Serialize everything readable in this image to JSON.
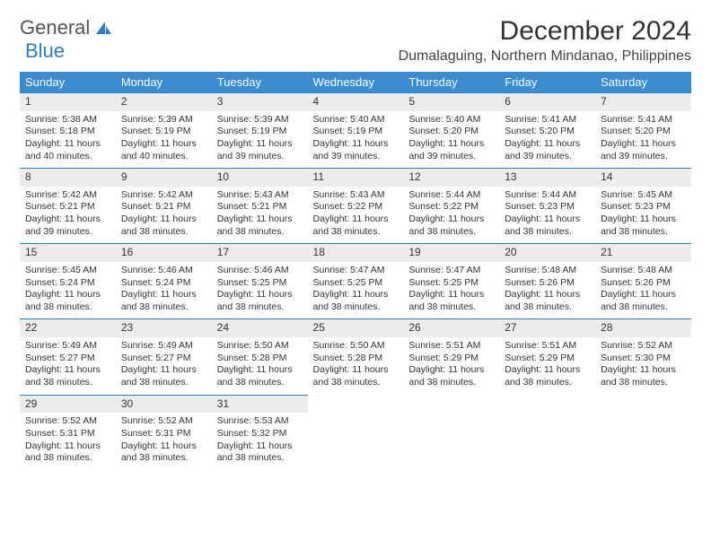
{
  "logo": {
    "text_general": "General",
    "text_blue": "Blue"
  },
  "title": "December 2024",
  "location": "Dumalaguing, Northern Mindanao, Philippines",
  "weekdays": [
    "Sunday",
    "Monday",
    "Tuesday",
    "Wednesday",
    "Thursday",
    "Friday",
    "Saturday"
  ],
  "colors": {
    "header_bg": "#3a8bcf",
    "header_text": "#ffffff",
    "daynum_bg": "#ececec",
    "daynum_border": "#2d7fc4",
    "body_text": "#333333"
  },
  "weeks": [
    [
      {
        "n": "1",
        "sr": "Sunrise: 5:38 AM",
        "ss": "Sunset: 5:18 PM",
        "dl1": "Daylight: 11 hours",
        "dl2": "and 40 minutes."
      },
      {
        "n": "2",
        "sr": "Sunrise: 5:39 AM",
        "ss": "Sunset: 5:19 PM",
        "dl1": "Daylight: 11 hours",
        "dl2": "and 40 minutes."
      },
      {
        "n": "3",
        "sr": "Sunrise: 5:39 AM",
        "ss": "Sunset: 5:19 PM",
        "dl1": "Daylight: 11 hours",
        "dl2": "and 39 minutes."
      },
      {
        "n": "4",
        "sr": "Sunrise: 5:40 AM",
        "ss": "Sunset: 5:19 PM",
        "dl1": "Daylight: 11 hours",
        "dl2": "and 39 minutes."
      },
      {
        "n": "5",
        "sr": "Sunrise: 5:40 AM",
        "ss": "Sunset: 5:20 PM",
        "dl1": "Daylight: 11 hours",
        "dl2": "and 39 minutes."
      },
      {
        "n": "6",
        "sr": "Sunrise: 5:41 AM",
        "ss": "Sunset: 5:20 PM",
        "dl1": "Daylight: 11 hours",
        "dl2": "and 39 minutes."
      },
      {
        "n": "7",
        "sr": "Sunrise: 5:41 AM",
        "ss": "Sunset: 5:20 PM",
        "dl1": "Daylight: 11 hours",
        "dl2": "and 39 minutes."
      }
    ],
    [
      {
        "n": "8",
        "sr": "Sunrise: 5:42 AM",
        "ss": "Sunset: 5:21 PM",
        "dl1": "Daylight: 11 hours",
        "dl2": "and 39 minutes."
      },
      {
        "n": "9",
        "sr": "Sunrise: 5:42 AM",
        "ss": "Sunset: 5:21 PM",
        "dl1": "Daylight: 11 hours",
        "dl2": "and 38 minutes."
      },
      {
        "n": "10",
        "sr": "Sunrise: 5:43 AM",
        "ss": "Sunset: 5:21 PM",
        "dl1": "Daylight: 11 hours",
        "dl2": "and 38 minutes."
      },
      {
        "n": "11",
        "sr": "Sunrise: 5:43 AM",
        "ss": "Sunset: 5:22 PM",
        "dl1": "Daylight: 11 hours",
        "dl2": "and 38 minutes."
      },
      {
        "n": "12",
        "sr": "Sunrise: 5:44 AM",
        "ss": "Sunset: 5:22 PM",
        "dl1": "Daylight: 11 hours",
        "dl2": "and 38 minutes."
      },
      {
        "n": "13",
        "sr": "Sunrise: 5:44 AM",
        "ss": "Sunset: 5:23 PM",
        "dl1": "Daylight: 11 hours",
        "dl2": "and 38 minutes."
      },
      {
        "n": "14",
        "sr": "Sunrise: 5:45 AM",
        "ss": "Sunset: 5:23 PM",
        "dl1": "Daylight: 11 hours",
        "dl2": "and 38 minutes."
      }
    ],
    [
      {
        "n": "15",
        "sr": "Sunrise: 5:45 AM",
        "ss": "Sunset: 5:24 PM",
        "dl1": "Daylight: 11 hours",
        "dl2": "and 38 minutes."
      },
      {
        "n": "16",
        "sr": "Sunrise: 5:46 AM",
        "ss": "Sunset: 5:24 PM",
        "dl1": "Daylight: 11 hours",
        "dl2": "and 38 minutes."
      },
      {
        "n": "17",
        "sr": "Sunrise: 5:46 AM",
        "ss": "Sunset: 5:25 PM",
        "dl1": "Daylight: 11 hours",
        "dl2": "and 38 minutes."
      },
      {
        "n": "18",
        "sr": "Sunrise: 5:47 AM",
        "ss": "Sunset: 5:25 PM",
        "dl1": "Daylight: 11 hours",
        "dl2": "and 38 minutes."
      },
      {
        "n": "19",
        "sr": "Sunrise: 5:47 AM",
        "ss": "Sunset: 5:25 PM",
        "dl1": "Daylight: 11 hours",
        "dl2": "and 38 minutes."
      },
      {
        "n": "20",
        "sr": "Sunrise: 5:48 AM",
        "ss": "Sunset: 5:26 PM",
        "dl1": "Daylight: 11 hours",
        "dl2": "and 38 minutes."
      },
      {
        "n": "21",
        "sr": "Sunrise: 5:48 AM",
        "ss": "Sunset: 5:26 PM",
        "dl1": "Daylight: 11 hours",
        "dl2": "and 38 minutes."
      }
    ],
    [
      {
        "n": "22",
        "sr": "Sunrise: 5:49 AM",
        "ss": "Sunset: 5:27 PM",
        "dl1": "Daylight: 11 hours",
        "dl2": "and 38 minutes."
      },
      {
        "n": "23",
        "sr": "Sunrise: 5:49 AM",
        "ss": "Sunset: 5:27 PM",
        "dl1": "Daylight: 11 hours",
        "dl2": "and 38 minutes."
      },
      {
        "n": "24",
        "sr": "Sunrise: 5:50 AM",
        "ss": "Sunset: 5:28 PM",
        "dl1": "Daylight: 11 hours",
        "dl2": "and 38 minutes."
      },
      {
        "n": "25",
        "sr": "Sunrise: 5:50 AM",
        "ss": "Sunset: 5:28 PM",
        "dl1": "Daylight: 11 hours",
        "dl2": "and 38 minutes."
      },
      {
        "n": "26",
        "sr": "Sunrise: 5:51 AM",
        "ss": "Sunset: 5:29 PM",
        "dl1": "Daylight: 11 hours",
        "dl2": "and 38 minutes."
      },
      {
        "n": "27",
        "sr": "Sunrise: 5:51 AM",
        "ss": "Sunset: 5:29 PM",
        "dl1": "Daylight: 11 hours",
        "dl2": "and 38 minutes."
      },
      {
        "n": "28",
        "sr": "Sunrise: 5:52 AM",
        "ss": "Sunset: 5:30 PM",
        "dl1": "Daylight: 11 hours",
        "dl2": "and 38 minutes."
      }
    ],
    [
      {
        "n": "29",
        "sr": "Sunrise: 5:52 AM",
        "ss": "Sunset: 5:31 PM",
        "dl1": "Daylight: 11 hours",
        "dl2": "and 38 minutes."
      },
      {
        "n": "30",
        "sr": "Sunrise: 5:52 AM",
        "ss": "Sunset: 5:31 PM",
        "dl1": "Daylight: 11 hours",
        "dl2": "and 38 minutes."
      },
      {
        "n": "31",
        "sr": "Sunrise: 5:53 AM",
        "ss": "Sunset: 5:32 PM",
        "dl1": "Daylight: 11 hours",
        "dl2": "and 38 minutes."
      },
      null,
      null,
      null,
      null
    ]
  ]
}
